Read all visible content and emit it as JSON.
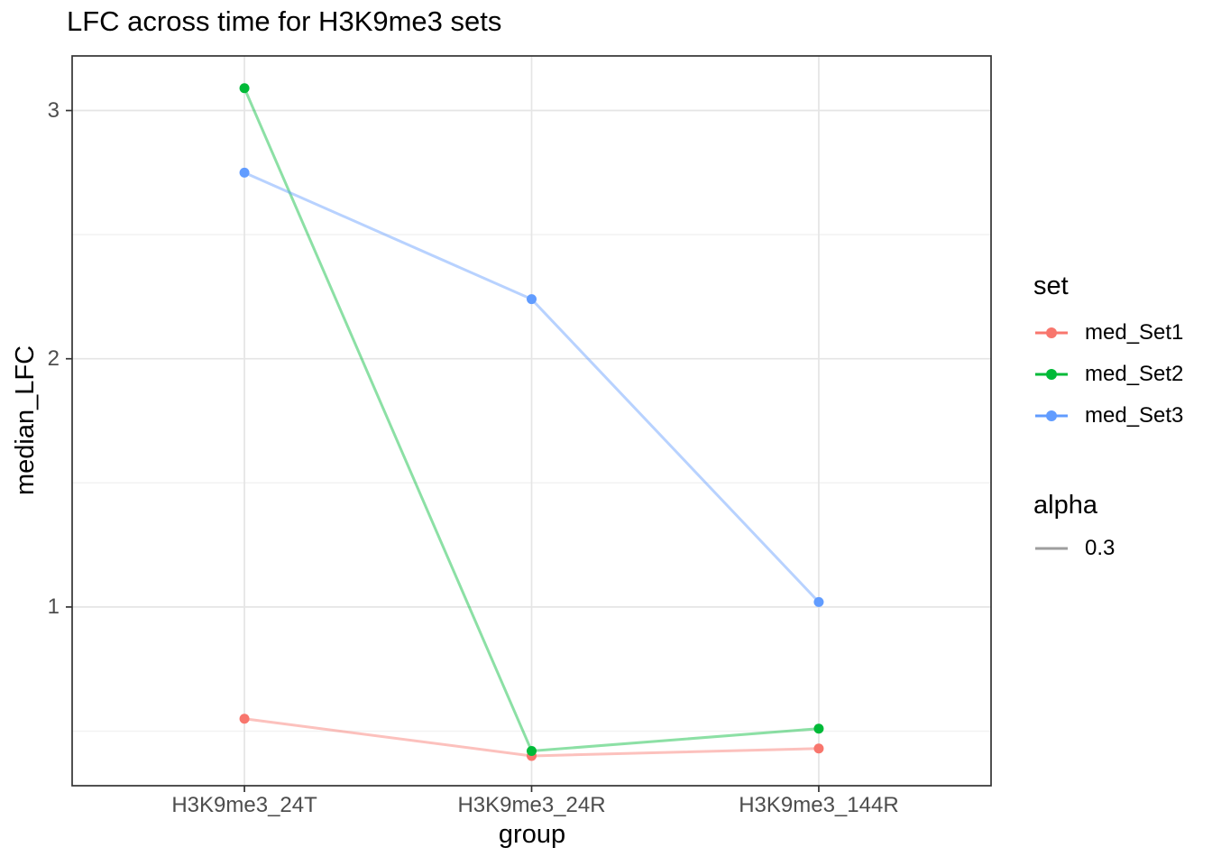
{
  "chart_data": {
    "type": "line",
    "title": "LFC across time for H3K9me3 sets",
    "xlabel": "group",
    "ylabel": "median_LFC",
    "categories": [
      "H3K9me3_24T",
      "H3K9me3_24R",
      "H3K9me3_144R"
    ],
    "series": [
      {
        "name": "med_Set1",
        "color": "#F8766D",
        "values": [
          0.55,
          0.4,
          0.43
        ]
      },
      {
        "name": "med_Set2",
        "color": "#00BA38",
        "values": [
          3.09,
          0.42,
          0.51
        ]
      },
      {
        "name": "med_Set3",
        "color": "#619CFF",
        "values": [
          2.75,
          2.24,
          1.02
        ]
      }
    ],
    "ylim": [
      0.28,
      3.22
    ],
    "y_major_ticks": [
      1,
      2,
      3
    ],
    "y_minor_ticks": [
      0.5,
      1.5,
      2.5
    ],
    "grid": "major+minor",
    "legend_position": "right",
    "line_alpha": 0.45
  },
  "legend": {
    "set_title": "set",
    "alpha_title": "alpha",
    "alpha_value": "0.3",
    "alpha_key_color": "#9E9E9E"
  },
  "style": {
    "background": "#FFFFFF",
    "panel_border": "#333333",
    "grid_major": "#E5E5E5",
    "grid_minor": "#F2F2F2",
    "tick_color": "#333333",
    "tick_label_color": "#4D4D4D",
    "text_color": "#000000"
  }
}
